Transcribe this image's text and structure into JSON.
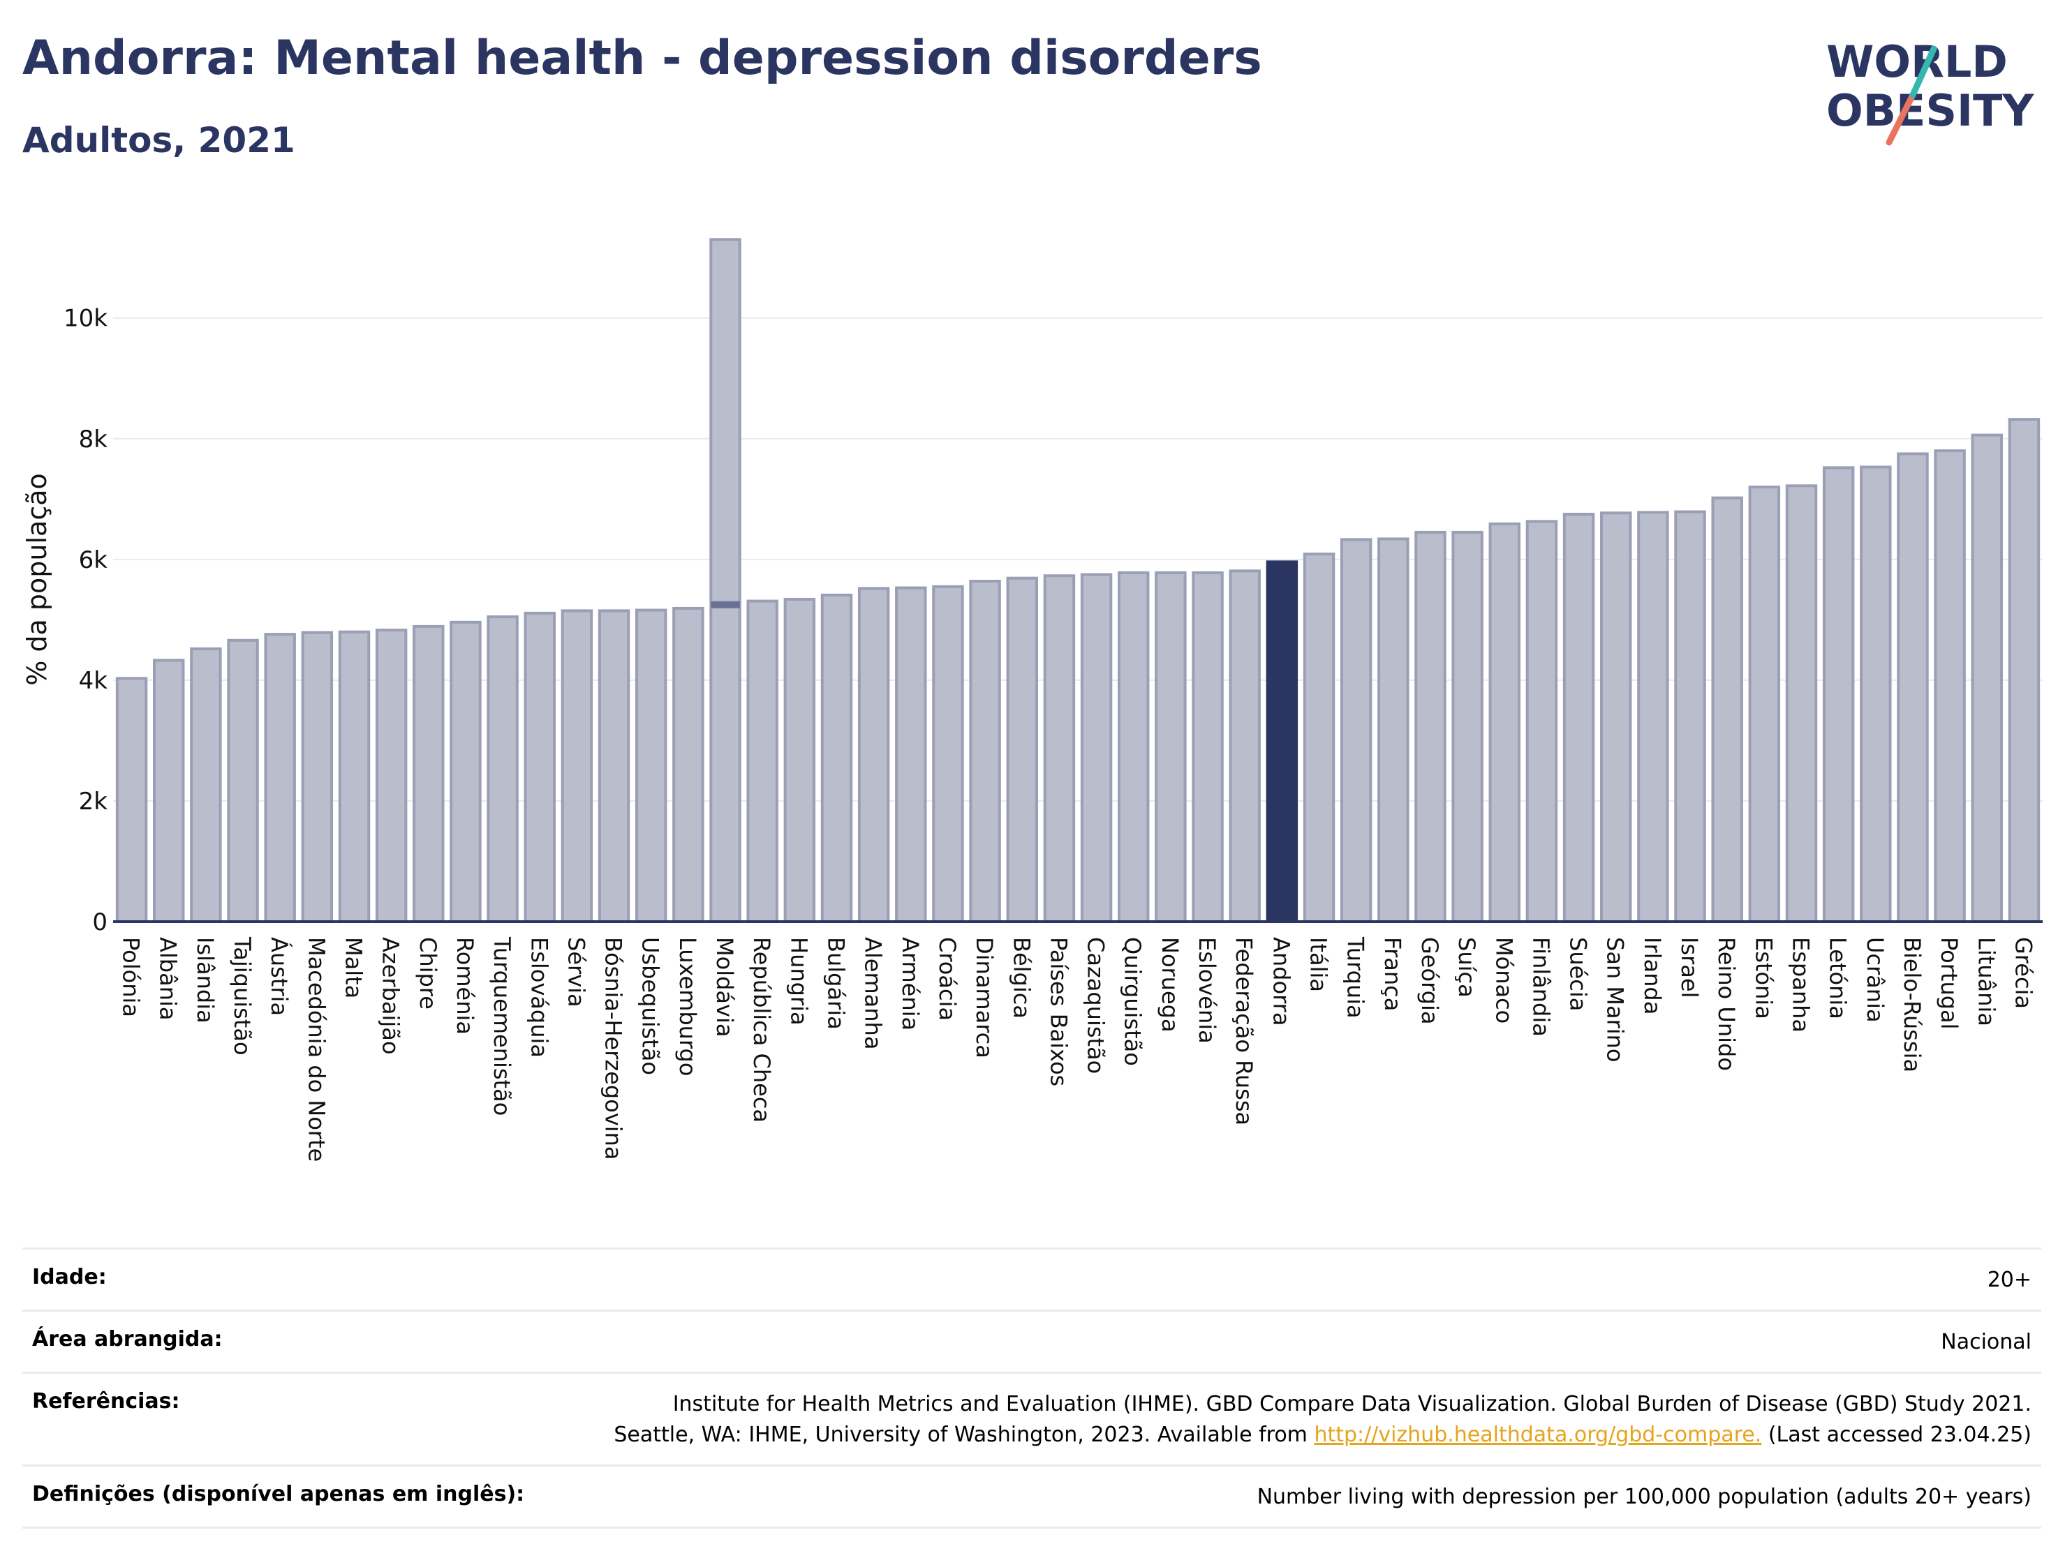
{
  "header": {
    "title": "Andorra: Mental health - depression disorders",
    "subtitle": "Adultos, 2021"
  },
  "logo": {
    "line1": "WORLD",
    "line2": "OBESITY",
    "accent_teal": "#35b7b0",
    "accent_coral": "#e8735f"
  },
  "colors": {
    "bar": "#b9bdcc",
    "bar_stroke": "#9a9fb5",
    "highlight": "#2b3561",
    "grid": "#e9eaee"
  },
  "chart_data": {
    "type": "bar",
    "ylabel": "% da população",
    "ylim": [
      0,
      11800
    ],
    "yticks": [
      0,
      2000,
      4000,
      6000,
      8000,
      10000
    ],
    "ytick_labels": [
      "0",
      "2k",
      "4k",
      "6k",
      "8k",
      "10k"
    ],
    "highlight": "Andorra",
    "categories": [
      "Polónia",
      "Albânia",
      "Islândia",
      "Tajiquistão",
      "Áustria",
      "Macedónia do Norte",
      "Malta",
      "Azerbaijão",
      "Chipre",
      "Roménia",
      "Turquemenistão",
      "Eslováquia",
      "Sérvia",
      "Bósnia-Herzegovina",
      "Usbequistão",
      "Luxemburgo",
      "Moldávia",
      "República Checa",
      "Hungria",
      "Bulgária",
      "Alemanha",
      "Arménia",
      "Croácia",
      "Dinamarca",
      "Bélgica",
      "Países Baixos",
      "Cazaquistão",
      "Quirguistão",
      "Noruega",
      "Eslovénia",
      "Federação Russa",
      "Andorra",
      "Itália",
      "Turquia",
      "França",
      "Geórgia",
      "Suíça",
      "Mónaco",
      "Finlândia",
      "Suécia",
      "San Marino",
      "Irlanda",
      "Israel",
      "Reino Unido",
      "Estónia",
      "Espanha",
      "Letónia",
      "Ucrânia",
      "Bielo-Rússia",
      "Portugal",
      "Lituânia",
      "Grécia"
    ],
    "values": [
      4030,
      4330,
      4520,
      4660,
      4760,
      4790,
      4800,
      4830,
      4890,
      4960,
      5050,
      5110,
      5150,
      5150,
      5160,
      5190,
      11300,
      5310,
      5340,
      5410,
      5520,
      5530,
      5550,
      5640,
      5690,
      5730,
      5750,
      5780,
      5780,
      5780,
      5810,
      5960,
      6090,
      6330,
      6340,
      6450,
      6450,
      6590,
      6630,
      6750,
      6770,
      6780,
      6790,
      7020,
      7200,
      7220,
      7520,
      7530,
      7750,
      7800,
      8060,
      8320
    ],
    "secondary_marks": [
      {
        "category": "Moldávia",
        "value": 5250
      }
    ]
  },
  "meta": {
    "rows": [
      {
        "key": "Idade:",
        "value": "20+"
      },
      {
        "key": "Área abrangida:",
        "value": "Nacional"
      },
      {
        "key": "Referências:",
        "line1": "Institute for Health Metrics and Evaluation (IHME). GBD Compare Data Visualization. Global Burden of Disease (GBD) Study 2021.",
        "line2_pre": "Seattle, WA: IHME, University of Washington, 2023. Available from ",
        "link": "http://vizhub.healthdata.org/gbd-compare.",
        "line2_post": " (Last accessed 23.04.25)"
      },
      {
        "key": "Definições (disponível apenas em inglês):",
        "value": "Number living with depression per 100,000 population (adults 20+ years)"
      }
    ]
  }
}
